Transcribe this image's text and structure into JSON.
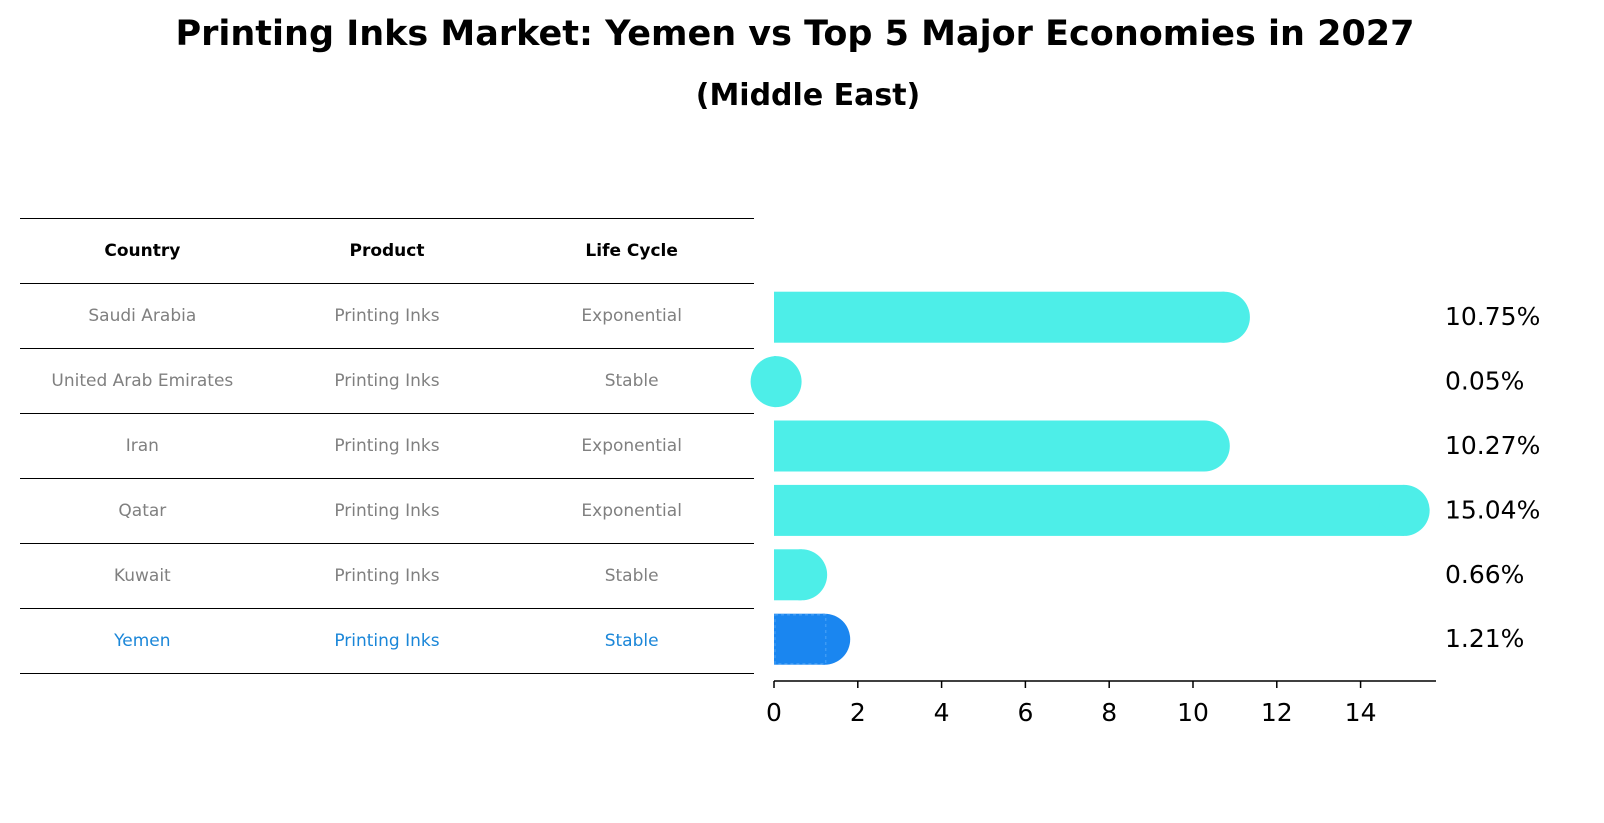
{
  "title": "Printing Inks Market: Yemen vs Top 5 Major Economies in 2027",
  "subtitle": "(Middle East)",
  "table": {
    "headers": [
      "Country",
      "Product",
      "Life Cycle"
    ],
    "rows": [
      {
        "country": "Saudi Arabia",
        "product": "Printing Inks",
        "life_cycle": "Exponential"
      },
      {
        "country": "United Arab Emirates",
        "product": "Printing Inks",
        "life_cycle": "Stable"
      },
      {
        "country": "Iran",
        "product": "Printing Inks",
        "life_cycle": "Exponential"
      },
      {
        "country": "Qatar",
        "product": "Printing Inks",
        "life_cycle": "Exponential"
      },
      {
        "country": "Kuwait",
        "product": "Printing Inks",
        "life_cycle": "Stable"
      },
      {
        "country": "Yemen",
        "product": "Printing Inks",
        "life_cycle": "Stable"
      }
    ],
    "highlight_row": 5
  },
  "chart_data": {
    "type": "bar",
    "orientation": "horizontal",
    "categories": [
      "Saudi Arabia",
      "United Arab Emirates",
      "Iran",
      "Qatar",
      "Kuwait",
      "Yemen"
    ],
    "values": [
      10.75,
      0.05,
      10.27,
      15.04,
      0.66,
      1.21
    ],
    "value_labels": [
      "10.75%",
      "0.05%",
      "10.27%",
      "15.04%",
      "0.66%",
      "1.21%"
    ],
    "xticks": [
      0,
      2,
      4,
      6,
      8,
      10,
      12,
      14
    ],
    "xlim": [
      0,
      15.8
    ],
    "grid": false,
    "colors": {
      "default": "#4deee8",
      "highlight": "#1a86f0"
    },
    "highlight_index": 5
  }
}
